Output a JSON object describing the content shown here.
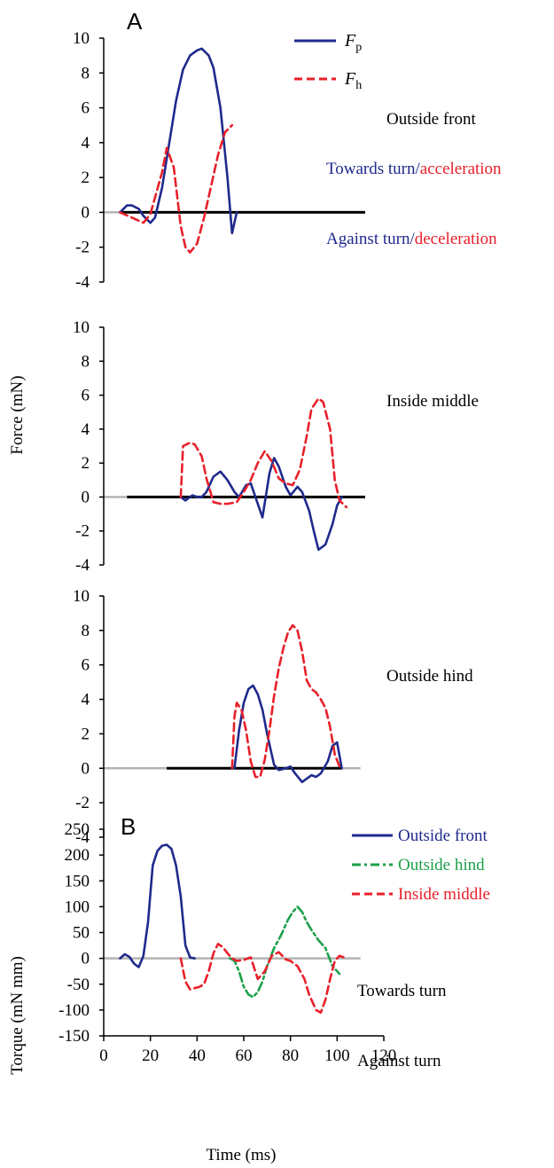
{
  "colors": {
    "blue": "#1f2a8c",
    "red": "#e8202a",
    "green": "#1ea04a",
    "black": "#000000",
    "zero_line": "#b4b4b4"
  },
  "figure": {
    "y_label_force": "Force (mN)",
    "y_label_torque": "Torque (mN mm)",
    "x_label": "Time (ms)"
  },
  "chart_data": [
    {
      "type": "line",
      "panel_label": "A",
      "label": "Outside front",
      "ylim": [
        -4,
        10
      ],
      "xlim": [
        0,
        120
      ],
      "y_ticks": [
        "10",
        "8",
        "6",
        "4",
        "2",
        "0",
        "-2",
        "-4"
      ],
      "legend": [
        {
          "name": "F",
          "sub": "p",
          "color": "#1f2a8c",
          "dash": "solid"
        },
        {
          "name": "F",
          "sub": "h",
          "color": "#e8202a",
          "dash": "dashed"
        }
      ],
      "annotations": {
        "towards_a": "Towards turn",
        "towards_b": "acceleration",
        "against_a": "Against turn",
        "against_b": "deceleration",
        "separator": "/"
      },
      "stance": [
        7,
        112
      ],
      "series": [
        {
          "name": "F_p",
          "color": "#1f2a8c",
          "dash": "solid",
          "x": [
            7,
            10,
            12,
            15,
            17,
            20,
            22,
            25,
            28,
            31,
            34,
            37,
            40,
            42,
            45,
            47,
            50,
            53,
            55,
            57
          ],
          "y": [
            0,
            0.4,
            0.4,
            0.2,
            -0.2,
            -0.6,
            -0.3,
            1.4,
            3.9,
            6.4,
            8.2,
            9.0,
            9.3,
            9.4,
            9.0,
            8.3,
            6.0,
            2.0,
            -1.2,
            0
          ]
        },
        {
          "name": "F_h",
          "color": "#e8202a",
          "dash": "dashed",
          "x": [
            7,
            12,
            17,
            20,
            25,
            27,
            30,
            33,
            35,
            37,
            40,
            43,
            46,
            49,
            52,
            55
          ],
          "y": [
            0,
            -0.3,
            -0.6,
            -0.1,
            2.3,
            3.7,
            2.6,
            -0.8,
            -2.0,
            -2.3,
            -1.8,
            -0.3,
            1.5,
            3.3,
            4.6,
            5.0
          ]
        }
      ]
    },
    {
      "type": "line",
      "label": "Inside middle",
      "ylim": [
        -4,
        10
      ],
      "xlim": [
        0,
        120
      ],
      "y_ticks": [
        "10",
        "8",
        "6",
        "4",
        "2",
        "0",
        "-2",
        "-4"
      ],
      "stance": [
        10,
        112
      ],
      "series": [
        {
          "name": "F_p",
          "color": "#1f2a8c",
          "dash": "solid",
          "x": [
            33,
            35,
            38,
            40,
            42,
            44,
            47,
            50,
            53,
            56,
            58,
            61,
            63,
            66,
            68,
            71,
            73,
            75,
            78,
            80,
            83,
            85,
            88,
            90,
            92,
            95,
            98,
            100,
            102
          ],
          "y": [
            0,
            -0.2,
            0.1,
            0,
            0,
            0.3,
            1.2,
            1.5,
            1.0,
            0.3,
            0,
            0.7,
            0.8,
            -0.4,
            -1.2,
            1.4,
            2.3,
            1.8,
            0.6,
            0.1,
            0.6,
            0.3,
            -0.8,
            -2.0,
            -3.1,
            -2.8,
            -1.6,
            -0.5,
            0
          ]
        },
        {
          "name": "F_h",
          "color": "#e8202a",
          "dash": "dashed",
          "x": [
            33,
            34,
            37,
            39,
            42,
            44,
            47,
            50,
            53,
            57,
            60,
            63,
            66,
            69,
            72,
            75,
            78,
            81,
            84,
            87,
            89,
            92,
            94,
            97,
            99,
            101,
            104
          ],
          "y": [
            0,
            3.0,
            3.2,
            3.1,
            2.4,
            1.1,
            -0.3,
            -0.4,
            -0.4,
            -0.3,
            0.3,
            1.0,
            2.0,
            2.7,
            2.1,
            1.1,
            0.8,
            0.7,
            1.6,
            3.6,
            5.2,
            5.8,
            5.6,
            4.0,
            1.0,
            -0.2,
            -0.6
          ]
        }
      ]
    },
    {
      "type": "line",
      "label": "Outside hind",
      "ylim": [
        -4,
        10
      ],
      "xlim": [
        0,
        120
      ],
      "y_ticks": [
        "10",
        "8",
        "6",
        "4",
        "2",
        "0",
        "-2",
        "-4"
      ],
      "stance": [
        27,
        102
      ],
      "series": [
        {
          "name": "F_p",
          "color": "#1f2a8c",
          "dash": "solid",
          "x": [
            56,
            58,
            60,
            62,
            64,
            66,
            68,
            70,
            73,
            75,
            78,
            80,
            82,
            85,
            87,
            89,
            91,
            93,
            96,
            98,
            100,
            102
          ],
          "y": [
            0,
            2.2,
            3.8,
            4.6,
            4.8,
            4.3,
            3.4,
            2.0,
            0.2,
            -0.1,
            0,
            0.1,
            -0.3,
            -0.8,
            -0.6,
            -0.4,
            -0.5,
            -0.3,
            0.4,
            1.3,
            1.5,
            0
          ]
        },
        {
          "name": "F_h",
          "color": "#e8202a",
          "dash": "dashed",
          "x": [
            55,
            56,
            57,
            59,
            61,
            63,
            65,
            67,
            69,
            71,
            73,
            75,
            77,
            79,
            81,
            83,
            85,
            87,
            89,
            91,
            93,
            95,
            97,
            99,
            101,
            102
          ],
          "y": [
            0,
            3.0,
            3.8,
            3.4,
            2.2,
            0.4,
            -0.5,
            -0.5,
            0.5,
            2.2,
            4.2,
            5.8,
            7.0,
            7.9,
            8.3,
            8.0,
            6.8,
            5.1,
            4.6,
            4.4,
            4.0,
            3.5,
            2.4,
            0.8,
            0.1,
            0
          ]
        }
      ]
    },
    {
      "type": "line",
      "panel_label": "B",
      "ylim": [
        -150,
        250
      ],
      "xlim": [
        0,
        120
      ],
      "y_ticks": [
        "250",
        "200",
        "150",
        "100",
        "50",
        "0",
        "-50",
        "-100",
        "-150"
      ],
      "x_ticks": [
        "0",
        "20",
        "40",
        "60",
        "80",
        "100",
        "120"
      ],
      "annotations": {
        "towards": "Towards turn",
        "against": "Against turn"
      },
      "legend": [
        {
          "name": "Outside front",
          "color": "#1f2a8c",
          "dash": "solid"
        },
        {
          "name": "Outside hind",
          "color": "#1ea04a",
          "dash": "dashdot"
        },
        {
          "name": "Inside middle",
          "color": "#e8202a",
          "dash": "dashed"
        }
      ],
      "series": [
        {
          "name": "Outside front",
          "color": "#1f2a8c",
          "dash": "solid",
          "x": [
            7,
            9,
            11,
            13,
            15,
            17,
            19,
            21,
            23,
            25,
            27,
            29,
            31,
            33,
            35,
            37,
            39
          ],
          "y": [
            0,
            8,
            3,
            -10,
            -17,
            5,
            70,
            180,
            208,
            218,
            220,
            212,
            180,
            120,
            25,
            2,
            0
          ]
        },
        {
          "name": "Outside hind",
          "color": "#1ea04a",
          "dash": "dashdot",
          "x": [
            54,
            56,
            58,
            60,
            62,
            64,
            66,
            68,
            70,
            73,
            76,
            79,
            81,
            83,
            85,
            87,
            89,
            92,
            95,
            98,
            101
          ],
          "y": [
            0,
            -5,
            -25,
            -55,
            -70,
            -75,
            -65,
            -45,
            -15,
            20,
            45,
            75,
            90,
            100,
            90,
            70,
            55,
            35,
            20,
            -15,
            -30
          ]
        },
        {
          "name": "Inside middle",
          "color": "#e8202a",
          "dash": "dashed",
          "x": [
            33,
            35,
            37,
            41,
            43,
            45,
            47,
            49,
            51,
            53,
            55,
            57,
            60,
            63,
            66,
            69,
            72,
            75,
            78,
            80,
            83,
            86,
            88,
            91,
            93,
            95,
            97,
            99,
            101,
            104
          ],
          "y": [
            0,
            -45,
            -60,
            -55,
            -50,
            -25,
            10,
            28,
            22,
            10,
            0,
            -5,
            -3,
            2,
            -40,
            -25,
            5,
            12,
            -2,
            -5,
            -15,
            -40,
            -70,
            -100,
            -105,
            -80,
            -40,
            -5,
            5,
            0
          ]
        }
      ]
    }
  ]
}
